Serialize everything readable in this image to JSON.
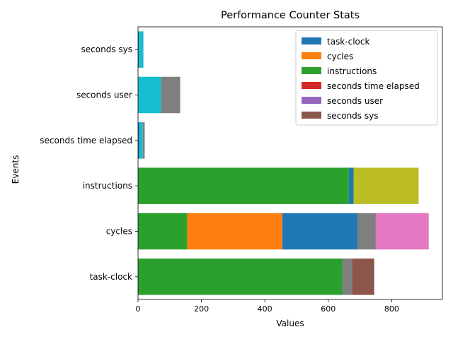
{
  "chart_data": {
    "type": "bar",
    "orientation": "horizontal",
    "stacked": true,
    "title": "Performance Counter Stats",
    "xlabel": "Values",
    "ylabel": "Events",
    "xlim": [
      0,
      960
    ],
    "xticks": [
      0,
      200,
      400,
      600,
      800
    ],
    "categories": [
      "task-clock",
      "cycles",
      "instructions",
      "seconds time elapsed",
      "seconds user",
      "seconds sys"
    ],
    "legend": {
      "placement": "top-right",
      "entries": [
        {
          "label": "task-clock",
          "color": "#1f77b4"
        },
        {
          "label": "cycles",
          "color": "#ff7f0e"
        },
        {
          "label": "instructions",
          "color": "#2ca02c"
        },
        {
          "label": "seconds time elapsed",
          "color": "#d62728"
        },
        {
          "label": "seconds user",
          "color": "#9467bd"
        },
        {
          "label": "seconds sys",
          "color": "#8c564b"
        }
      ]
    },
    "bars": [
      {
        "category": "task-clock",
        "segments": [
          {
            "value": 645,
            "color": "#2ca02c"
          },
          {
            "value": 30,
            "color": "#7f7f7f"
          },
          {
            "value": 70,
            "color": "#8c564b"
          }
        ]
      },
      {
        "category": "cycles",
        "segments": [
          {
            "value": 155,
            "color": "#2ca02c"
          },
          {
            "value": 300,
            "color": "#ff7f0e"
          },
          {
            "value": 237,
            "color": "#1f77b4"
          },
          {
            "value": 58,
            "color": "#7f7f7f"
          },
          {
            "value": 167,
            "color": "#e377c2"
          }
        ]
      },
      {
        "category": "instructions",
        "segments": [
          {
            "value": 665,
            "color": "#2ca02c"
          },
          {
            "value": 15,
            "color": "#1f77b4"
          },
          {
            "value": 205,
            "color": "#bcbd22"
          }
        ]
      },
      {
        "category": "seconds time elapsed",
        "segments": [
          {
            "value": 5,
            "color": "#1f77b4"
          },
          {
            "value": 10,
            "color": "#17becf"
          },
          {
            "value": 6,
            "color": "#7f7f7f"
          }
        ]
      },
      {
        "category": "seconds user",
        "segments": [
          {
            "value": 73,
            "color": "#17becf"
          },
          {
            "value": 60,
            "color": "#7f7f7f"
          }
        ]
      },
      {
        "category": "seconds sys",
        "segments": [
          {
            "value": 3,
            "color": "#1f77b4"
          },
          {
            "value": 14,
            "color": "#17becf"
          }
        ]
      }
    ]
  }
}
